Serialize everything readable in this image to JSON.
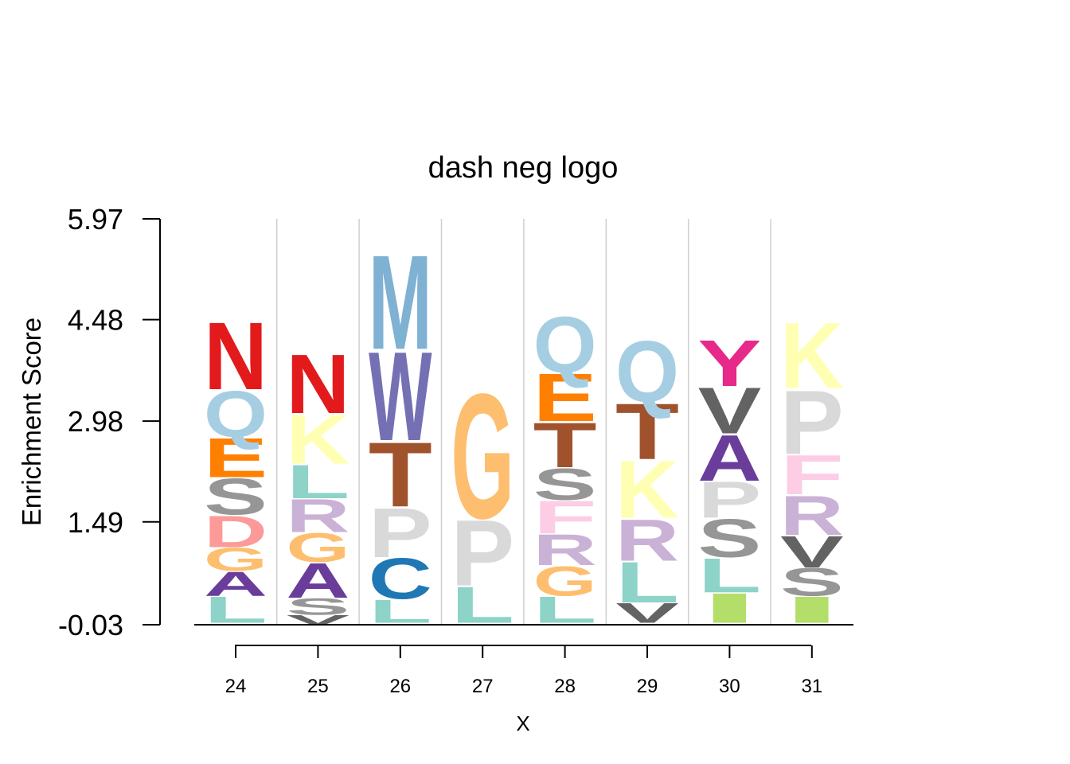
{
  "chart_data": {
    "type": "sequence-logo",
    "title": "dash neg logo",
    "xlabel": "X",
    "ylabel": "Enrichment Score",
    "y_ticks": [
      "5.97",
      "4.48",
      "2.98",
      "1.49",
      "-0.03"
    ],
    "y_tick_values": [
      5.97,
      4.48,
      2.98,
      1.49,
      -0.03
    ],
    "ylim": [
      -0.03,
      5.97
    ],
    "grid": "vertical separators",
    "positions": [
      {
        "label": "24",
        "letters": [
          {
            "char": "L",
            "from": 0.0,
            "to": 0.4,
            "color": "#8DD3C7"
          },
          {
            "char": "A",
            "from": 0.4,
            "to": 0.77,
            "color": "#6A3D9A"
          },
          {
            "char": "G",
            "from": 0.77,
            "to": 1.12,
            "color": "#FDBF6F"
          },
          {
            "char": "D",
            "from": 1.12,
            "to": 1.6,
            "color": "#FB9A99"
          },
          {
            "char": "S",
            "from": 1.6,
            "to": 2.15,
            "color": "#969696"
          },
          {
            "char": "E",
            "from": 2.15,
            "to": 2.75,
            "color": "#FF7F00"
          },
          {
            "char": "Q",
            "from": 2.75,
            "to": 3.45,
            "color": "#A6CEE3"
          },
          {
            "char": "N",
            "from": 3.45,
            "to": 4.47,
            "color": "#E31A1C"
          }
        ]
      },
      {
        "label": "25",
        "letters": [
          {
            "char": "V",
            "from": -0.03,
            "to": 0.12,
            "color": "#636363"
          },
          {
            "char": "S",
            "from": 0.12,
            "to": 0.37,
            "color": "#969696"
          },
          {
            "char": "A",
            "from": 0.37,
            "to": 0.9,
            "color": "#6A3D9A"
          },
          {
            "char": "G",
            "from": 0.9,
            "to": 1.34,
            "color": "#FDBF6F"
          },
          {
            "char": "R",
            "from": 1.34,
            "to": 1.84,
            "color": "#CAB2D6"
          },
          {
            "char": "L",
            "from": 1.84,
            "to": 2.35,
            "color": "#8DD3C7"
          },
          {
            "char": "K",
            "from": 2.35,
            "to": 3.1,
            "color": "#FFFFB3"
          },
          {
            "char": "N",
            "from": 3.1,
            "to": 4.0,
            "color": "#E31A1C"
          }
        ]
      },
      {
        "label": "26",
        "letters": [
          {
            "char": "L",
            "from": 0.0,
            "to": 0.35,
            "color": "#8DD3C7"
          },
          {
            "char": "C",
            "from": 0.35,
            "to": 0.97,
            "color": "#1F78B4"
          },
          {
            "char": "P",
            "from": 0.97,
            "to": 1.72,
            "color": "#D9D9D9"
          },
          {
            "char": "T",
            "from": 1.72,
            "to": 2.7,
            "color": "#A0522D"
          },
          {
            "char": "W",
            "from": 2.7,
            "to": 4.05,
            "color": "#7570B3"
          },
          {
            "char": "M",
            "from": 4.05,
            "to": 5.48,
            "color": "#7FB1D3"
          }
        ]
      },
      {
        "label": "27",
        "letters": [
          {
            "char": "L",
            "from": 0.0,
            "to": 0.55,
            "color": "#8DD3C7"
          },
          {
            "char": "P",
            "from": 0.55,
            "to": 1.55,
            "color": "#D9D9D9"
          },
          {
            "char": "G",
            "from": 1.55,
            "to": 3.45,
            "color": "#FDBF6F"
          }
        ]
      },
      {
        "label": "28",
        "letters": [
          {
            "char": "L",
            "from": 0.0,
            "to": 0.4,
            "color": "#8DD3C7"
          },
          {
            "char": "G",
            "from": 0.4,
            "to": 0.85,
            "color": "#FDBF6F"
          },
          {
            "char": "R",
            "from": 0.85,
            "to": 1.32,
            "color": "#CAB2D6"
          },
          {
            "char": "F",
            "from": 1.32,
            "to": 1.82,
            "color": "#FCCDE5"
          },
          {
            "char": "S",
            "from": 1.82,
            "to": 2.3,
            "color": "#969696"
          },
          {
            "char": "T",
            "from": 2.3,
            "to": 2.98,
            "color": "#A0522D"
          },
          {
            "char": "E",
            "from": 2.98,
            "to": 3.7,
            "color": "#FF7F00"
          },
          {
            "char": "Q",
            "from": 3.7,
            "to": 4.55,
            "color": "#A6CEE3"
          }
        ]
      },
      {
        "label": "29",
        "letters": [
          {
            "char": "V",
            "from": 0.0,
            "to": 0.3,
            "color": "#636363"
          },
          {
            "char": "L",
            "from": 0.3,
            "to": 0.92,
            "color": "#8DD3C7"
          },
          {
            "char": "R",
            "from": 0.92,
            "to": 1.55,
            "color": "#CAB2D6"
          },
          {
            "char": "K",
            "from": 1.55,
            "to": 2.42,
            "color": "#FFFFB3"
          },
          {
            "char": "T",
            "from": 2.42,
            "to": 3.27,
            "color": "#A0522D"
          },
          {
            "char": "Q",
            "from": 3.27,
            "to": 4.2,
            "color": "#A6CEE3"
          }
        ]
      },
      {
        "label": "30",
        "letters": [
          {
            "char": "I",
            "from": 0.0,
            "to": 0.45,
            "color": "#B3DE69"
          },
          {
            "char": "L",
            "from": 0.45,
            "to": 0.97,
            "color": "#8DD3C7"
          },
          {
            "char": "S",
            "from": 0.97,
            "to": 1.55,
            "color": "#969696"
          },
          {
            "char": "P",
            "from": 1.55,
            "to": 2.1,
            "color": "#D9D9D9"
          },
          {
            "char": "A",
            "from": 2.1,
            "to": 2.8,
            "color": "#6A3D9A"
          },
          {
            "char": "V",
            "from": 2.8,
            "to": 3.5,
            "color": "#636363"
          },
          {
            "char": "Y",
            "from": 3.5,
            "to": 4.2,
            "color": "#E7298A"
          }
        ]
      },
      {
        "label": "31",
        "letters": [
          {
            "char": "I",
            "from": 0.0,
            "to": 0.4,
            "color": "#B3DE69"
          },
          {
            "char": "S",
            "from": 0.4,
            "to": 0.82,
            "color": "#969696"
          },
          {
            "char": "V",
            "from": 0.82,
            "to": 1.3,
            "color": "#636363"
          },
          {
            "char": "R",
            "from": 1.3,
            "to": 1.9,
            "color": "#CAB2D6"
          },
          {
            "char": "F",
            "from": 1.9,
            "to": 2.5,
            "color": "#FCCDE5"
          },
          {
            "char": "P",
            "from": 2.5,
            "to": 3.47,
            "color": "#D9D9D9"
          },
          {
            "char": "K",
            "from": 3.47,
            "to": 4.47,
            "color": "#FFFFB3"
          }
        ]
      }
    ]
  }
}
